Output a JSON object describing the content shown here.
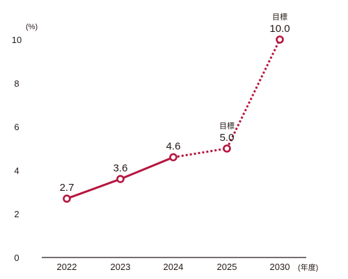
{
  "chart_data": {
    "type": "line",
    "categories": [
      "2022",
      "2023",
      "2024",
      "2025",
      "2030"
    ],
    "values": [
      2.7,
      3.6,
      4.6,
      5.0,
      10.0
    ],
    "value_labels": [
      "2.7",
      "3.6",
      "4.6",
      "5.0",
      "10.0"
    ],
    "target_label": "目標",
    "target_flags": [
      false,
      false,
      false,
      true,
      true
    ],
    "segment_styles": [
      "solid",
      "solid",
      "dotted",
      "dotted"
    ],
    "ylim": [
      0,
      10
    ],
    "yticks": [
      0,
      2,
      4,
      6,
      8,
      10
    ],
    "ylabel": "(%)",
    "xlabel": "(年度)",
    "grid": false,
    "colors": {
      "line": "#b5163f",
      "axis": "#231815",
      "point_fill": "#ffffff"
    }
  }
}
